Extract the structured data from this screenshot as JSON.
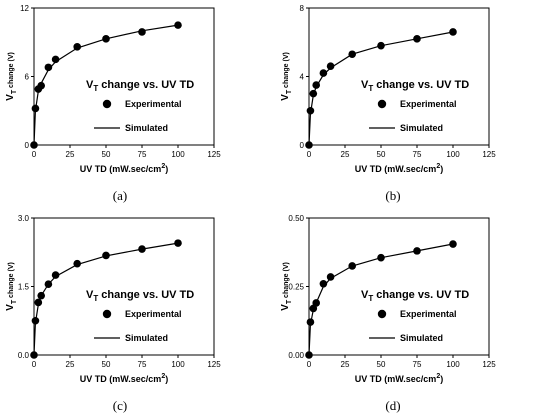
{
  "figure": {
    "panels": [
      {
        "label": "(a)",
        "ylabel_main": "V",
        "ylabel_sub": "T",
        "ylabel_rest": "change (V)",
        "xlabel_main": "UV TD (mW.sec/cm",
        "xlabel_sup": "2",
        "xlabel_close": ")",
        "title_main": "V",
        "title_sub": "T",
        "title_rest": " change vs. UV TD",
        "legend_experimental": "Experimental",
        "legend_simulated": "Simulated",
        "xticks": [
          "0",
          "25",
          "50",
          "75",
          "100",
          "125"
        ],
        "yticks": [
          "0",
          "6",
          "12"
        ]
      },
      {
        "label": "(b)",
        "ylabel_main": "V",
        "ylabel_sub": "T",
        "ylabel_rest": "change (V)",
        "xlabel_main": "UV TD (mW.sec/cm",
        "xlabel_sup": "2",
        "xlabel_close": ")",
        "title_main": "V",
        "title_sub": "T",
        "title_rest": " change vs. UV TD",
        "legend_experimental": "Experimental",
        "legend_simulated": "Simulated",
        "xticks": [
          "0",
          "25",
          "50",
          "75",
          "100",
          "125"
        ],
        "yticks": [
          "0",
          "4",
          "8"
        ]
      },
      {
        "label": "(c)",
        "ylabel_main": "V",
        "ylabel_sub": "T",
        "ylabel_rest": "change (V)",
        "xlabel_main": "UV TD (mW.sec/cm",
        "xlabel_sup": "2",
        "xlabel_close": ")",
        "title_main": "V",
        "title_sub": "T",
        "title_rest": " change vs. UV TD",
        "legend_experimental": "Experimental",
        "legend_simulated": "Simulated",
        "xticks": [
          "0",
          "25",
          "50",
          "75",
          "100",
          "125"
        ],
        "yticks": [
          "0.0",
          "1.5",
          "3.0"
        ]
      },
      {
        "label": "(d)",
        "ylabel_main": "V",
        "ylabel_sub": "T",
        "ylabel_rest": "change (V)",
        "xlabel_main": "UV TD (mW.sec/cm",
        "xlabel_sup": "2",
        "xlabel_close": ")",
        "title_main": "V",
        "title_sub": "T",
        "title_rest": " change vs. UV TD",
        "legend_experimental": "Experimental",
        "legend_simulated": "Simulated",
        "xticks": [
          "0",
          "25",
          "50",
          "75",
          "100",
          "125"
        ],
        "yticks": [
          "0.00",
          "0.25",
          "0.50"
        ]
      }
    ]
  },
  "chart_data": [
    {
      "type": "scatter",
      "panel": "(a)",
      "xlim": [
        0,
        125
      ],
      "ylim": [
        0,
        12
      ],
      "series": [
        {
          "name": "Experimental",
          "type": "scatter",
          "x": [
            0,
            1,
            3,
            5,
            10,
            15,
            30,
            50,
            75,
            100
          ],
          "y": [
            0,
            3.2,
            4.9,
            5.2,
            6.8,
            7.5,
            8.6,
            9.3,
            9.9,
            10.5
          ]
        },
        {
          "name": "Simulated",
          "type": "line",
          "x": [
            0,
            1,
            3,
            5,
            10,
            15,
            30,
            50,
            75,
            100
          ],
          "y": [
            0,
            3.0,
            4.7,
            5.4,
            6.6,
            7.3,
            8.5,
            9.3,
            10.0,
            10.5
          ]
        }
      ]
    },
    {
      "type": "scatter",
      "panel": "(b)",
      "xlim": [
        0,
        125
      ],
      "ylim": [
        0,
        8
      ],
      "series": [
        {
          "name": "Experimental",
          "type": "scatter",
          "x": [
            0,
            1,
            3,
            5,
            10,
            15,
            30,
            50,
            75,
            100
          ],
          "y": [
            0,
            2.0,
            3.0,
            3.5,
            4.2,
            4.6,
            5.3,
            5.8,
            6.2,
            6.6
          ]
        },
        {
          "name": "Simulated",
          "type": "line",
          "x": [
            0,
            1,
            3,
            5,
            10,
            15,
            30,
            50,
            75,
            100
          ],
          "y": [
            0,
            1.8,
            2.9,
            3.4,
            4.1,
            4.5,
            5.3,
            5.8,
            6.2,
            6.6
          ]
        }
      ]
    },
    {
      "type": "scatter",
      "panel": "(c)",
      "xlim": [
        0,
        125
      ],
      "ylim": [
        0,
        3.0
      ],
      "series": [
        {
          "name": "Experimental",
          "type": "scatter",
          "x": [
            0,
            1,
            3,
            5,
            10,
            15,
            30,
            50,
            75,
            100
          ],
          "y": [
            0,
            0.75,
            1.15,
            1.3,
            1.55,
            1.75,
            2.0,
            2.18,
            2.32,
            2.45
          ]
        },
        {
          "name": "Simulated",
          "type": "line",
          "x": [
            0,
            1,
            3,
            5,
            10,
            15,
            30,
            50,
            75,
            100
          ],
          "y": [
            0,
            0.7,
            1.1,
            1.3,
            1.55,
            1.72,
            1.98,
            2.17,
            2.32,
            2.45
          ]
        }
      ]
    },
    {
      "type": "scatter",
      "panel": "(d)",
      "xlim": [
        0,
        125
      ],
      "ylim": [
        0,
        0.5
      ],
      "series": [
        {
          "name": "Experimental",
          "type": "scatter",
          "x": [
            0,
            1,
            3,
            5,
            10,
            15,
            30,
            50,
            75,
            100
          ],
          "y": [
            0,
            0.12,
            0.17,
            0.19,
            0.26,
            0.285,
            0.325,
            0.355,
            0.38,
            0.405
          ]
        },
        {
          "name": "Simulated",
          "type": "line",
          "x": [
            0,
            1,
            3,
            5,
            10,
            15,
            30,
            50,
            75,
            100
          ],
          "y": [
            0,
            0.11,
            0.165,
            0.19,
            0.25,
            0.28,
            0.325,
            0.355,
            0.38,
            0.405
          ]
        }
      ]
    }
  ]
}
